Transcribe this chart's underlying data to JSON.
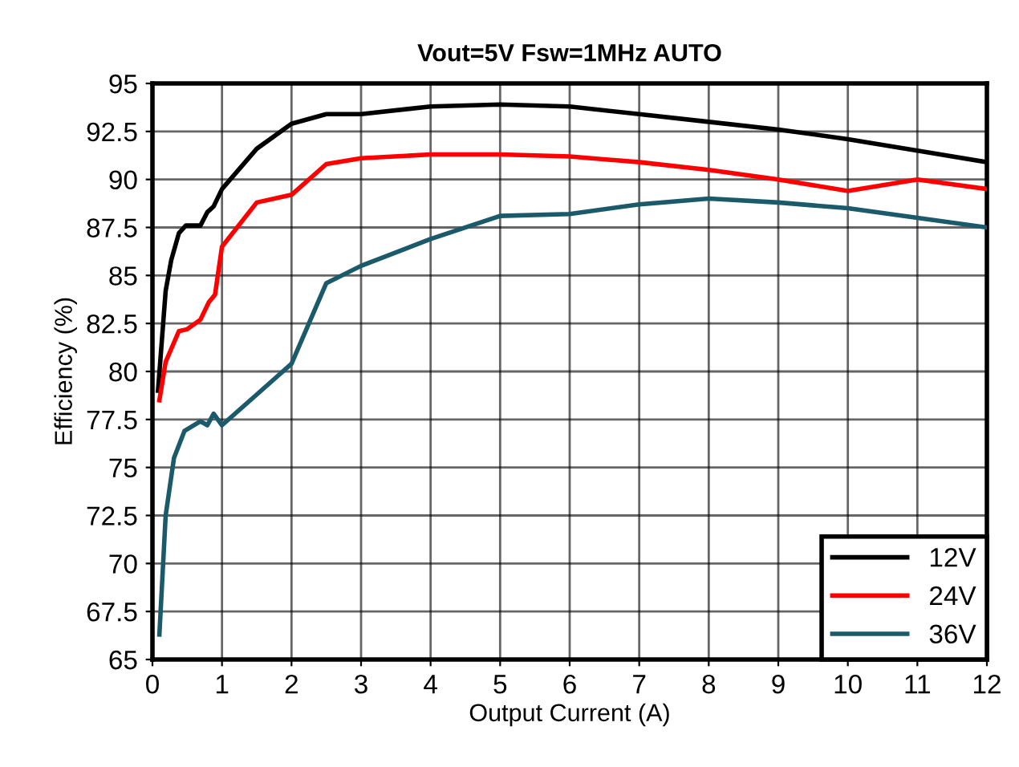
{
  "chart_data": {
    "type": "line",
    "title": "Vout=5V Fsw=1MHz AUTO",
    "xlabel": "Output Current (A)",
    "ylabel": "Efficiency (%)",
    "xlim": [
      0,
      12
    ],
    "xticks": [
      0,
      1,
      2,
      3,
      4,
      5,
      6,
      7,
      8,
      9,
      10,
      11,
      12
    ],
    "ylim": [
      65,
      95
    ],
    "yticks": [
      65,
      67.5,
      70,
      72.5,
      75,
      77.5,
      80,
      82.5,
      85,
      87.5,
      90,
      92.5,
      95
    ],
    "grid": true,
    "legend": "bottom right",
    "line_style": "solid",
    "series": [
      {
        "name": "12V",
        "color": "#000000",
        "x": [
          0.08,
          0.19,
          0.27,
          0.38,
          0.48,
          0.69,
          0.79,
          0.88,
          1.0,
          1.5,
          2.0,
          2.5,
          3.0,
          4.0,
          5.0,
          6.0,
          7.0,
          8.0,
          9.0,
          10.0,
          11.0,
          12.0
        ],
        "values": [
          79.0,
          84.2,
          85.8,
          87.2,
          87.6,
          87.6,
          88.3,
          88.6,
          89.5,
          91.6,
          92.9,
          93.4,
          93.4,
          93.8,
          93.9,
          93.8,
          93.4,
          93.0,
          92.6,
          92.1,
          91.5,
          90.9
        ]
      },
      {
        "name": "24V",
        "color": "#ff0000",
        "x": [
          0.1,
          0.19,
          0.38,
          0.5,
          0.69,
          0.81,
          0.9,
          1.0,
          1.5,
          2.0,
          2.5,
          3.0,
          4.0,
          5.0,
          6.0,
          7.0,
          8.0,
          9.0,
          10.0,
          11.0,
          12.0
        ],
        "values": [
          78.5,
          80.5,
          82.1,
          82.2,
          82.7,
          83.6,
          84.0,
          86.5,
          88.8,
          89.2,
          90.8,
          91.1,
          91.3,
          91.3,
          91.2,
          90.9,
          90.5,
          90.0,
          89.4,
          90.0,
          89.5
        ]
      },
      {
        "name": "36V",
        "color": "#1a5a6a",
        "x": [
          0.1,
          0.19,
          0.31,
          0.46,
          0.69,
          0.79,
          0.88,
          1.0,
          1.5,
          2.0,
          2.5,
          3.0,
          4.0,
          5.0,
          6.0,
          7.0,
          8.0,
          9.0,
          10.0,
          11.0,
          12.0
        ],
        "values": [
          66.3,
          72.5,
          75.5,
          76.9,
          77.4,
          77.2,
          77.8,
          77.2,
          78.8,
          80.4,
          84.6,
          85.5,
          86.9,
          88.1,
          88.2,
          88.7,
          89.0,
          88.8,
          88.5,
          88.0,
          87.5
        ]
      }
    ]
  }
}
